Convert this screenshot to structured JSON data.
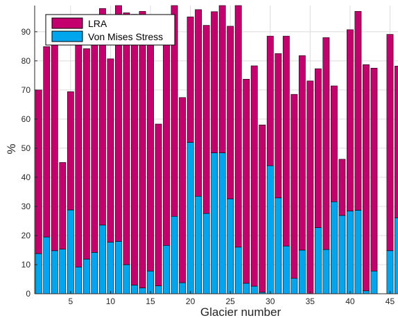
{
  "chart_data": {
    "type": "bar",
    "stacked": true,
    "xlabel": "Glacier number",
    "ylabel": "%",
    "xlim": [
      0.5,
      46
    ],
    "ylim": [
      0,
      99
    ],
    "xticks": [
      5,
      10,
      15,
      20,
      25,
      30,
      35,
      40,
      45
    ],
    "yticks": [
      0,
      10,
      20,
      30,
      40,
      50,
      60,
      70,
      80,
      90
    ],
    "grid": true,
    "legend_position": "top-left",
    "x": [
      1,
      2,
      3,
      4,
      5,
      6,
      7,
      8,
      9,
      10,
      11,
      12,
      13,
      14,
      15,
      16,
      17,
      18,
      19,
      20,
      21,
      22,
      23,
      24,
      25,
      26,
      27,
      28,
      29,
      30,
      31,
      32,
      33,
      34,
      35,
      36,
      37,
      38,
      39,
      40,
      41,
      42,
      43,
      44,
      45,
      46
    ],
    "series": [
      {
        "name": "Von Mises Stress",
        "color": "#00a6ed",
        "values": [
          13.8,
          19.5,
          14.8,
          15.3,
          28.8,
          9.2,
          11.9,
          14.2,
          23.6,
          17.7,
          18.0,
          10.0,
          3.0,
          2.0,
          7.8,
          2.7,
          16.6,
          26.6,
          3.8,
          52.0,
          33.5,
          27.6,
          48.4,
          48.4,
          32.6,
          16.0,
          3.6,
          2.6,
          0.5,
          44.0,
          32.9,
          16.4,
          5.3,
          15.0,
          0,
          22.7,
          15.2,
          31.6,
          26.9,
          28.4,
          28.7,
          1.0,
          7.8,
          0,
          14.8,
          26.1
        ]
      },
      {
        "name": "LRA",
        "color": "#c4006e",
        "values": [
          56.2,
          65.4,
          74.0,
          29.8,
          40.6,
          77.8,
          72.3,
          73.3,
          74.4,
          63.0,
          81.0,
          86.5,
          93.0,
          95.0,
          87.2,
          55.6,
          70.4,
          72.4,
          63.6,
          43.1,
          64.1,
          64.6,
          48.5,
          50.6,
          59.3,
          83.0,
          70.1,
          75.7,
          57.5,
          44.5,
          49.6,
          72.1,
          63.2,
          66.8,
          73.1,
          54.6,
          72.8,
          39.8,
          19.3,
          62.3,
          68.3,
          77.7,
          69.7,
          0,
          74.3,
          52.1
        ]
      }
    ]
  }
}
